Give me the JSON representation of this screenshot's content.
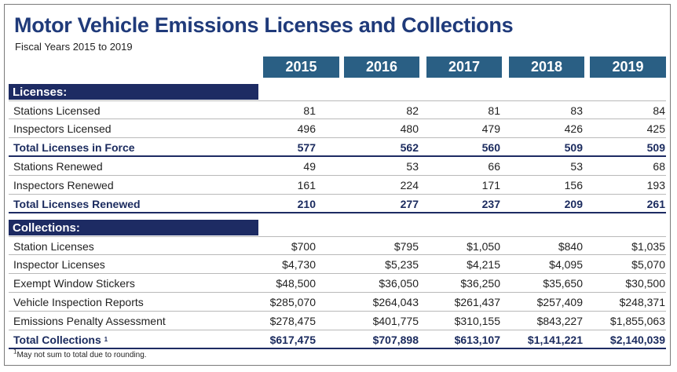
{
  "title": "Motor Vehicle Emissions Licenses and Collections",
  "subtitle": "Fiscal Years 2015 to 2019",
  "years": [
    "2015",
    "2016",
    "2017",
    "2018",
    "2019"
  ],
  "licenses": {
    "heading": "Licenses:",
    "rows": [
      {
        "label": "Stations Licensed",
        "values": [
          "81",
          "82",
          "81",
          "83",
          "84"
        ],
        "total": false
      },
      {
        "label": "Inspectors Licensed",
        "values": [
          "496",
          "480",
          "479",
          "426",
          "425"
        ],
        "total": false
      },
      {
        "label": "Total Licenses in Force",
        "values": [
          "577",
          "562",
          "560",
          "509",
          "509"
        ],
        "total": true
      },
      {
        "label": "Stations Renewed",
        "values": [
          "49",
          "53",
          "66",
          "53",
          "68"
        ],
        "total": false
      },
      {
        "label": "Inspectors Renewed",
        "values": [
          "161",
          "224",
          "171",
          "156",
          "193"
        ],
        "total": false
      },
      {
        "label": "Total Licenses Renewed",
        "values": [
          "210",
          "277",
          "237",
          "209",
          "261"
        ],
        "total": true
      }
    ]
  },
  "collections": {
    "heading": "Collections:",
    "rows": [
      {
        "label": "Station Licenses",
        "values": [
          "$700",
          "$795",
          "$1,050",
          "$840",
          "$1,035"
        ],
        "total": false
      },
      {
        "label": "Inspector Licenses",
        "values": [
          "$4,730",
          "$5,235",
          "$4,215",
          "$4,095",
          "$5,070"
        ],
        "total": false
      },
      {
        "label": "Exempt Window Stickers",
        "values": [
          "$48,500",
          "$36,050",
          "$36,250",
          "$35,650",
          "$30,500"
        ],
        "total": false
      },
      {
        "label": "Vehicle Inspection Reports",
        "values": [
          "$285,070",
          "$264,043",
          "$261,437",
          "$257,409",
          "$248,371"
        ],
        "total": false
      },
      {
        "label": "Emissions Penalty Assessment",
        "values": [
          "$278,475",
          "$401,775",
          "$310,155",
          "$843,227",
          "$1,855,063"
        ],
        "total": false
      },
      {
        "label": "Total Collections",
        "footnote_mark": "1",
        "values": [
          "$617,475",
          "$707,898",
          "$613,107",
          "$1,141,221",
          "$2,140,039"
        ],
        "total": true
      }
    ]
  },
  "footnote": {
    "mark": "1",
    "text": "May not sum to total due to rounding."
  },
  "colors": {
    "title": "#1f3a7a",
    "year_header": "#2a5f84",
    "section_header": "#1d2b63"
  }
}
